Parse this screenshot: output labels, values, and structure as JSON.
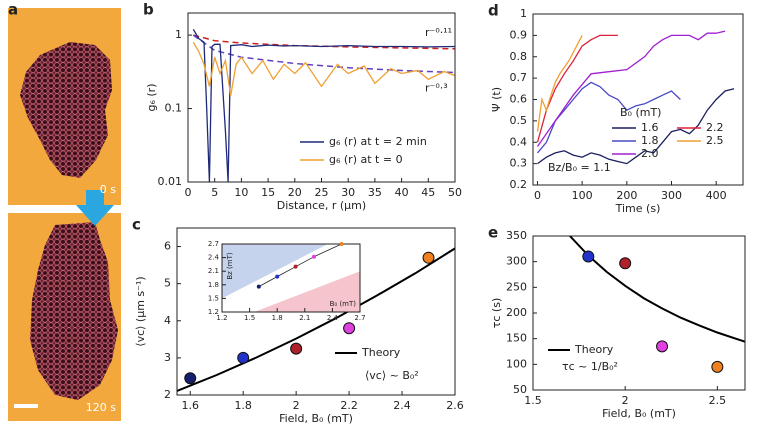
{
  "image_panel": {
    "label": "a",
    "frames": [
      "0 s",
      "120 s"
    ]
  },
  "chart_data": [
    {
      "type": "line",
      "label": "b",
      "xlabel": "Distance, r (μm)",
      "ylabel": "g₆ (r)",
      "log_y": true,
      "xlim": [
        0,
        50
      ],
      "ylim": [
        0.01,
        2
      ],
      "xticks": [
        0,
        5,
        10,
        15,
        20,
        25,
        30,
        35,
        40,
        45,
        50
      ],
      "yticks": [
        0.01,
        0.1,
        1
      ],
      "legend": "lower right",
      "series": [
        {
          "name": "g₆ (r) at t = 2 min",
          "color": "#1f2a7a",
          "x": [
            1,
            2,
            3,
            3.5,
            4,
            4.5,
            5,
            6,
            7,
            7.5,
            8,
            10,
            12,
            15,
            18,
            20,
            25,
            30,
            35,
            40,
            45,
            50
          ],
          "values": [
            1.2,
            0.9,
            0.8,
            0.1,
            0.01,
            0.7,
            0.75,
            0.75,
            0.05,
            0.01,
            0.72,
            0.74,
            0.7,
            0.73,
            0.71,
            0.72,
            0.7,
            0.72,
            0.7,
            0.7,
            0.69,
            0.7
          ]
        },
        {
          "name": "g₆ (r) at t = 0",
          "color": "#f0a030",
          "x": [
            1,
            2,
            3,
            4,
            5,
            6,
            7,
            8,
            9,
            10,
            12,
            14,
            16,
            18,
            20,
            22,
            25,
            28,
            30,
            33,
            35,
            38,
            40,
            43,
            45,
            48,
            50
          ],
          "values": [
            0.8,
            0.6,
            0.4,
            0.2,
            0.5,
            0.3,
            0.45,
            0.15,
            0.4,
            0.5,
            0.3,
            0.45,
            0.25,
            0.4,
            0.3,
            0.42,
            0.2,
            0.4,
            0.3,
            0.38,
            0.22,
            0.35,
            0.3,
            0.33,
            0.25,
            0.32,
            0.28
          ]
        }
      ],
      "fits": [
        {
          "label": "r⁻⁰·¹¹",
          "color": "#d02020",
          "x": [
            1,
            5,
            10,
            20,
            30,
            40,
            50
          ],
          "values": [
            1.0,
            0.84,
            0.78,
            0.72,
            0.69,
            0.67,
            0.65
          ]
        },
        {
          "label": "r⁻⁰·³",
          "color": "#6040c0",
          "x": [
            1,
            5,
            10,
            20,
            30,
            40,
            50
          ],
          "values": [
            1.0,
            0.62,
            0.5,
            0.41,
            0.36,
            0.33,
            0.31
          ]
        }
      ]
    },
    {
      "type": "scatter",
      "label": "c",
      "xlabel": "Field, B₀ (mT)",
      "ylabel": "⟨vc⟩ (μm s⁻¹)",
      "xlim": [
        1.55,
        2.6
      ],
      "ylim": [
        2,
        6.5
      ],
      "xticks": [
        1.6,
        1.8,
        2,
        2.2,
        2.4,
        2.6
      ],
      "yticks": [
        2,
        3,
        4,
        5,
        6
      ],
      "x": [
        1.6,
        1.8,
        2.0,
        2.2,
        2.5
      ],
      "values": [
        2.45,
        3.0,
        3.25,
        3.8,
        5.7
      ],
      "colors": [
        "#14206e",
        "#2233cc",
        "#b0202a",
        "#e040e0",
        "#f08020"
      ],
      "theory": {
        "name": "Theory",
        "color": "#000000",
        "x": [
          1.55,
          1.7,
          1.85,
          2.0,
          2.15,
          2.3,
          2.45,
          2.6
        ],
        "values": [
          2.11,
          2.54,
          3.01,
          3.52,
          4.07,
          4.66,
          5.28,
          5.95
        ]
      },
      "annotation": "⟨vc⟩ ~ B₀²",
      "inset": {
        "xlabel": "B₀ (mT)",
        "ylabel": "Bz (mT)",
        "xlim": [
          1.2,
          2.7
        ],
        "ylim": [
          1.2,
          2.7
        ],
        "xticks": [
          1.2,
          1.5,
          1.8,
          2.1,
          2.4,
          2.7
        ],
        "yticks": [
          1.2,
          1.5,
          1.8,
          2.1,
          2.4,
          2.7
        ],
        "x": [
          1.6,
          1.8,
          2.0,
          2.2,
          2.5
        ],
        "values": [
          1.76,
          1.98,
          2.2,
          2.42,
          2.7
        ],
        "upper_region": {
          "color": "#c5d3ec",
          "x": [
            1.2,
            2.35
          ],
          "values": [
            1.5,
            2.7
          ]
        },
        "lower_region": {
          "color": "#f6c4cc",
          "x": [
            1.55,
            2.7
          ],
          "values": [
            1.2,
            2.1
          ]
        }
      }
    },
    {
      "type": "line",
      "label": "d",
      "xlabel": "Time (s)",
      "ylabel": "Ψ (t)",
      "xlim": [
        -10,
        460
      ],
      "ylim": [
        0.2,
        1.0
      ],
      "xticks": [
        0,
        100,
        200,
        300,
        400
      ],
      "yticks": [
        0.2,
        0.3,
        0.4,
        0.5,
        0.6,
        0.7,
        0.8,
        0.9,
        1
      ],
      "legend": "lower right",
      "legend_title": "B₀ (mT)",
      "annotation": "Bz/B₀ = 1.1",
      "series": [
        {
          "name": "1.6",
          "color": "#1a1f5e",
          "x": [
            0,
            20,
            40,
            60,
            80,
            100,
            120,
            140,
            160,
            180,
            200,
            220,
            240,
            260,
            280,
            300,
            320,
            340,
            360,
            380,
            400,
            420,
            440
          ],
          "values": [
            0.3,
            0.33,
            0.35,
            0.36,
            0.34,
            0.33,
            0.35,
            0.34,
            0.32,
            0.31,
            0.3,
            0.33,
            0.36,
            0.35,
            0.4,
            0.45,
            0.46,
            0.44,
            0.48,
            0.55,
            0.6,
            0.64,
            0.65
          ]
        },
        {
          "name": "1.8",
          "color": "#4a4ac8",
          "x": [
            0,
            20,
            40,
            60,
            80,
            100,
            120,
            140,
            160,
            180,
            200,
            220,
            240,
            260,
            280,
            300,
            320
          ],
          "values": [
            0.35,
            0.4,
            0.5,
            0.55,
            0.6,
            0.65,
            0.68,
            0.66,
            0.62,
            0.6,
            0.55,
            0.57,
            0.58,
            0.6,
            0.62,
            0.64,
            0.6
          ]
        },
        {
          "name": "2.0",
          "color": "#a020d0",
          "x": [
            0,
            40,
            80,
            120,
            160,
            200,
            240,
            260,
            280,
            300,
            320,
            340,
            360,
            380,
            400,
            420
          ],
          "values": [
            0.38,
            0.5,
            0.62,
            0.72,
            0.73,
            0.74,
            0.8,
            0.85,
            0.88,
            0.9,
            0.9,
            0.9,
            0.88,
            0.91,
            0.91,
            0.92
          ]
        },
        {
          "name": "2.2",
          "color": "#e0203a",
          "x": [
            0,
            20,
            40,
            60,
            80,
            100,
            120,
            140,
            160,
            180
          ],
          "values": [
            0.4,
            0.55,
            0.65,
            0.72,
            0.78,
            0.85,
            0.88,
            0.9,
            0.9,
            0.9
          ]
        },
        {
          "name": "2.5",
          "color": "#f0a030",
          "x": [
            0,
            10,
            20,
            30,
            40,
            50,
            60,
            70,
            80,
            90,
            100
          ],
          "values": [
            0.45,
            0.6,
            0.55,
            0.62,
            0.68,
            0.72,
            0.75,
            0.78,
            0.82,
            0.86,
            0.9
          ]
        }
      ]
    },
    {
      "type": "scatter",
      "label": "e",
      "xlabel": "Field, B₀ (mT)",
      "ylabel": "τc (s)",
      "xlim": [
        1.5,
        2.65
      ],
      "ylim": [
        50,
        350
      ],
      "xticks": [
        1.5,
        2,
        2.5
      ],
      "yticks": [
        50,
        100,
        150,
        200,
        250,
        300,
        350
      ],
      "x": [
        1.8,
        2.0,
        2.2,
        2.5
      ],
      "values": [
        310,
        297,
        135,
        95
      ],
      "colors": [
        "#2233cc",
        "#b0202a",
        "#e040e0",
        "#f08020"
      ],
      "theory": {
        "name": "Theory",
        "color": "#000000",
        "x": [
          1.7,
          1.8,
          1.9,
          2.0,
          2.1,
          2.2,
          2.3,
          2.4,
          2.5,
          2.6,
          2.65
        ],
        "values": [
          350,
          312,
          280,
          253,
          229,
          209,
          191,
          176,
          162,
          150,
          144
        ]
      },
      "annotation": "τc ~ 1/B₀²"
    }
  ]
}
